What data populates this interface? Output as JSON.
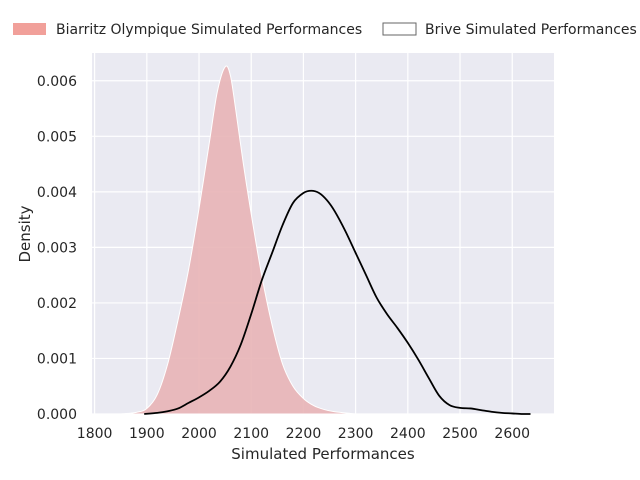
{
  "chart_data": {
    "type": "area",
    "title": "",
    "xlabel": "Simulated Performances",
    "ylabel": "Density",
    "xlim": [
      1795,
      2680
    ],
    "ylim": [
      0,
      0.0065
    ],
    "xticks": [
      "1800",
      "1900",
      "2000",
      "2100",
      "2200",
      "2300",
      "2400",
      "2500",
      "2600"
    ],
    "xtick_values": [
      1800,
      1900,
      2000,
      2100,
      2200,
      2300,
      2400,
      2500,
      2600
    ],
    "yticks": [
      "0.000",
      "0.001",
      "0.002",
      "0.003",
      "0.004",
      "0.005",
      "0.006"
    ],
    "ytick_values": [
      0,
      0.001,
      0.002,
      0.003,
      0.004,
      0.005,
      0.006
    ],
    "grid": true,
    "legend_position": "top",
    "series": [
      {
        "name": "Biarritz Olympique Simulated Performances",
        "style": "filled",
        "color": "#f1a09a",
        "fill_color": "#e8b4b6",
        "x": [
          1850,
          1880,
          1900,
          1920,
          1940,
          1960,
          1980,
          2000,
          2020,
          2035,
          2050,
          2060,
          2070,
          2085,
          2100,
          2120,
          2140,
          2160,
          2180,
          2200,
          2220,
          2240,
          2260,
          2290,
          2300
        ],
        "values": [
          0.0,
          3e-05,
          0.0001,
          0.00035,
          0.0009,
          0.0017,
          0.0026,
          0.0037,
          0.0049,
          0.0058,
          0.00625,
          0.0061,
          0.0055,
          0.0045,
          0.0036,
          0.0025,
          0.0016,
          0.0009,
          0.0005,
          0.00028,
          0.00015,
          8e-05,
          4e-05,
          1e-05,
          0.0
        ]
      },
      {
        "name": "Brive Simulated Performances",
        "style": "line",
        "color": "#000000",
        "x": [
          1895,
          1920,
          1940,
          1960,
          1980,
          2000,
          2020,
          2040,
          2060,
          2080,
          2100,
          2120,
          2140,
          2160,
          2180,
          2200,
          2215,
          2230,
          2245,
          2260,
          2280,
          2300,
          2320,
          2340,
          2360,
          2380,
          2400,
          2420,
          2440,
          2460,
          2480,
          2500,
          2520,
          2540,
          2560,
          2580,
          2600,
          2620,
          2635
        ],
        "values": [
          0.0,
          2e-05,
          5e-05,
          0.0001,
          0.0002,
          0.0003,
          0.00042,
          0.00058,
          0.00085,
          0.00125,
          0.0018,
          0.0024,
          0.0029,
          0.0034,
          0.0038,
          0.00398,
          0.00402,
          0.00398,
          0.00385,
          0.00365,
          0.0033,
          0.0029,
          0.0025,
          0.0021,
          0.0018,
          0.00155,
          0.00128,
          0.00098,
          0.00065,
          0.00033,
          0.00016,
          0.00011,
          0.0001,
          7e-05,
          4e-05,
          2e-05,
          1e-05,
          0.0,
          0.0
        ]
      }
    ]
  }
}
